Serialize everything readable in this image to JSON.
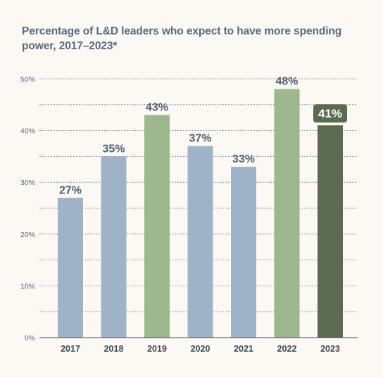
{
  "title": "Percentage of L&D leaders who expect to have more spending power, 2017–2023*",
  "chart_data": {
    "type": "bar",
    "title": "Percentage of L&D leaders who expect to have more spending power, 2017–2023*",
    "categories": [
      "2017",
      "2018",
      "2019",
      "2020",
      "2021",
      "2022",
      "2023"
    ],
    "values": [
      27,
      35,
      43,
      37,
      33,
      48,
      41
    ],
    "value_labels": [
      "27%",
      "35%",
      "43%",
      "37%",
      "33%",
      "48%",
      "41%"
    ],
    "bar_colors": [
      "#9eb3c8",
      "#9eb3c8",
      "#9db78f",
      "#9eb3c8",
      "#9eb3c8",
      "#9db78f",
      "#5a6b51"
    ],
    "highlight_index": 6,
    "highlight_label_color": "#5a6b51",
    "ylim": [
      0,
      50
    ],
    "yticks": [
      0,
      10,
      20,
      30,
      40,
      50
    ],
    "ytick_labels": [
      "0%",
      "10%",
      "20%",
      "30%",
      "40%",
      "50%"
    ],
    "minor_gridlines": [
      5,
      15,
      25,
      35,
      45
    ],
    "grid": true,
    "xlabel": "",
    "ylabel": ""
  }
}
